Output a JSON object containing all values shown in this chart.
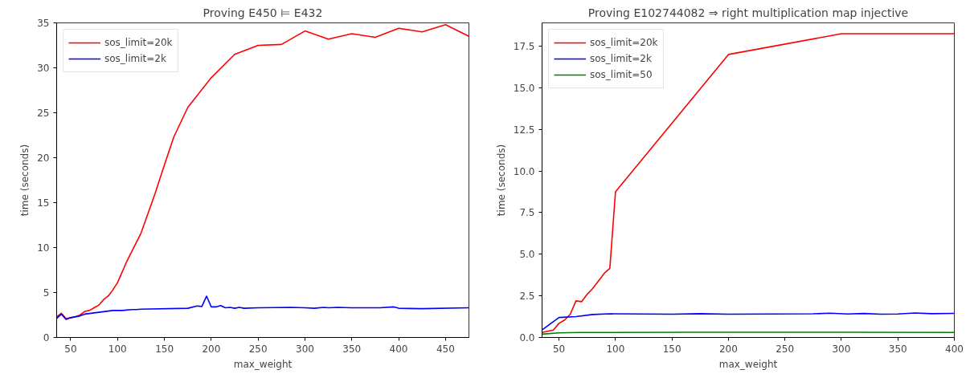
{
  "chart_data": [
    {
      "type": "line",
      "title": "Proving E450 ⊨ E432",
      "xlabel": "max_weight",
      "ylabel": "time (seconds)",
      "xlim": [
        35,
        475
      ],
      "ylim": [
        0,
        35
      ],
      "xticks": [
        50,
        100,
        150,
        200,
        250,
        300,
        350,
        400,
        450
      ],
      "yticks": [
        0,
        5,
        10,
        15,
        20,
        25,
        30,
        35
      ],
      "grid": false,
      "legend": "top left",
      "marker": "none",
      "line_style": "solid",
      "series": [
        {
          "name": "sos_limit=20k",
          "color": "#ff0000",
          "x": [
            35,
            40,
            45,
            50,
            55,
            60,
            65,
            70,
            75,
            80,
            85,
            90,
            95,
            100,
            110,
            125,
            140,
            150,
            160,
            175,
            200,
            225,
            250,
            275,
            300,
            325,
            350,
            375,
            400,
            425,
            450,
            475
          ],
          "values": [
            2.3,
            2.7,
            2.1,
            2.2,
            2.3,
            2.5,
            2.9,
            3.0,
            3.3,
            3.6,
            4.2,
            4.6,
            5.3,
            6.1,
            8.5,
            11.6,
            16.0,
            19.2,
            22.3,
            25.6,
            28.9,
            31.5,
            32.5,
            32.6,
            34.1,
            33.2,
            33.8,
            33.4,
            34.4,
            34.0,
            34.8,
            33.5
          ]
        },
        {
          "name": "sos_limit=2k",
          "color": "#0000ff",
          "x": [
            35,
            40,
            45,
            50,
            60,
            65,
            80,
            95,
            105,
            115,
            120,
            125,
            175,
            185,
            190,
            195,
            200,
            205,
            210,
            215,
            220,
            225,
            230,
            235,
            250,
            285,
            300,
            310,
            320,
            325,
            335,
            350,
            380,
            395,
            400,
            425,
            475
          ],
          "values": [
            2.1,
            2.6,
            2.0,
            2.2,
            2.4,
            2.6,
            2.8,
            3.0,
            3.0,
            3.1,
            3.1,
            3.15,
            3.25,
            3.5,
            3.45,
            4.6,
            3.4,
            3.4,
            3.55,
            3.3,
            3.35,
            3.25,
            3.35,
            3.25,
            3.3,
            3.35,
            3.3,
            3.25,
            3.35,
            3.3,
            3.35,
            3.3,
            3.3,
            3.4,
            3.25,
            3.2,
            3.3
          ]
        }
      ]
    },
    {
      "type": "line",
      "title": "Proving E102744082 ⇒ right multiplication map injective",
      "xlabel": "max_weight",
      "ylabel": "time (seconds)",
      "xlim": [
        35,
        400
      ],
      "ylim": [
        0,
        18.9
      ],
      "xticks": [
        50,
        100,
        150,
        200,
        250,
        300,
        350,
        400
      ],
      "yticks": [
        {
          "value": 0,
          "label": "0.0"
        },
        2.5,
        {
          "value": 5,
          "label": "5.0"
        },
        7.5,
        {
          "value": 10,
          "label": "10.0"
        },
        12.5,
        {
          "value": 15,
          "label": "15.0"
        },
        17.5
      ],
      "grid": false,
      "legend": "top left",
      "marker": "none",
      "line_style": "solid",
      "series": [
        {
          "name": "sos_limit=20k",
          "color": "#ff0000",
          "x": [
            35,
            45,
            50,
            55,
            60,
            65,
            70,
            75,
            80,
            90,
            95,
            100,
            200,
            300,
            400
          ],
          "values": [
            0.3,
            0.45,
            0.85,
            1.05,
            1.4,
            2.2,
            2.15,
            2.6,
            2.95,
            3.85,
            4.15,
            8.75,
            17.0,
            18.25,
            18.25
          ]
        },
        {
          "name": "sos_limit=2k",
          "color": "#0000ff",
          "x": [
            35,
            50,
            65,
            80,
            95,
            150,
            175,
            200,
            275,
            290,
            305,
            320,
            335,
            350,
            365,
            380,
            400
          ],
          "values": [
            0.45,
            1.2,
            1.25,
            1.38,
            1.42,
            1.4,
            1.43,
            1.4,
            1.42,
            1.46,
            1.41,
            1.44,
            1.4,
            1.41,
            1.47,
            1.43,
            1.45
          ]
        },
        {
          "name": "sos_limit=50",
          "color": "#008000",
          "x": [
            35,
            50,
            70,
            100,
            170,
            250,
            300,
            400
          ],
          "values": [
            0.2,
            0.28,
            0.3,
            0.3,
            0.31,
            0.31,
            0.31,
            0.3
          ]
        }
      ]
    }
  ]
}
